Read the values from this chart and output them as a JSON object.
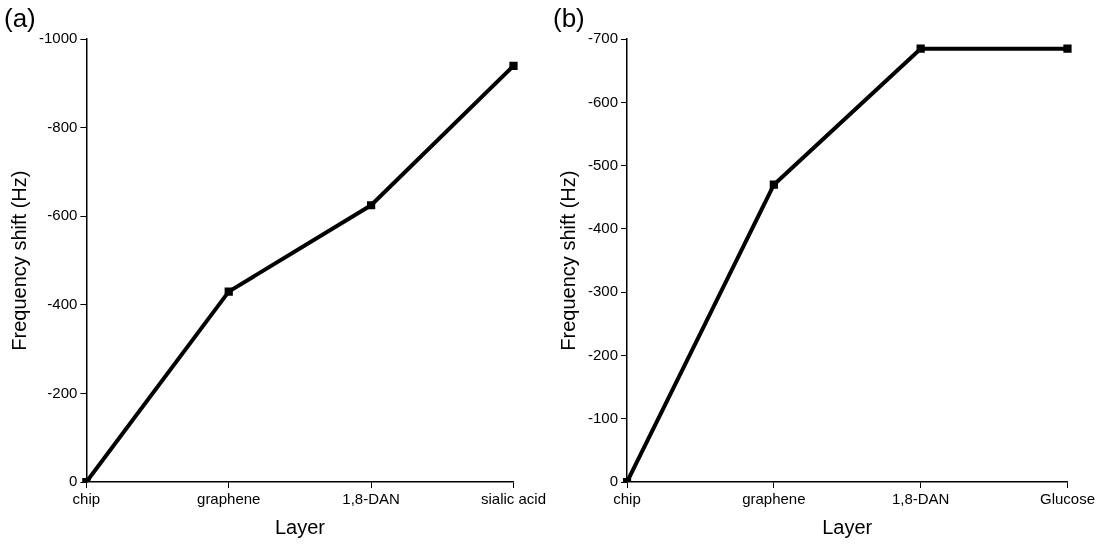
{
  "chart_data": [
    {
      "type": "line",
      "title": "(a)",
      "xlabel": "Layer",
      "ylabel": "Frequency shift (Hz)",
      "categories": [
        "chip",
        "graphene",
        "1,8-DAN",
        "sialic acid"
      ],
      "series": [
        {
          "color": "#000000",
          "values": [
            0,
            -430,
            -625,
            -940
          ]
        }
      ],
      "ylim": [
        0,
        -1000
      ],
      "yticks": [
        0,
        -200,
        -400,
        -600,
        -800,
        -1000
      ],
      "grid": false,
      "legend": false,
      "marker": "square",
      "line_style": "solid"
    },
    {
      "type": "line",
      "title": "(b)",
      "xlabel": "Layer",
      "ylabel": "Frequency shift (Hz)",
      "categories": [
        "chip",
        "graphene",
        "1,8-DAN",
        "Glucose"
      ],
      "series": [
        {
          "color": "#000000",
          "values": [
            0,
            -470,
            -685,
            -685
          ]
        }
      ],
      "ylim": [
        0,
        -700
      ],
      "yticks": [
        0,
        -100,
        -200,
        -300,
        -400,
        -500,
        -600,
        -700
      ],
      "grid": false,
      "legend": false,
      "marker": "square",
      "line_style": "solid"
    }
  ]
}
